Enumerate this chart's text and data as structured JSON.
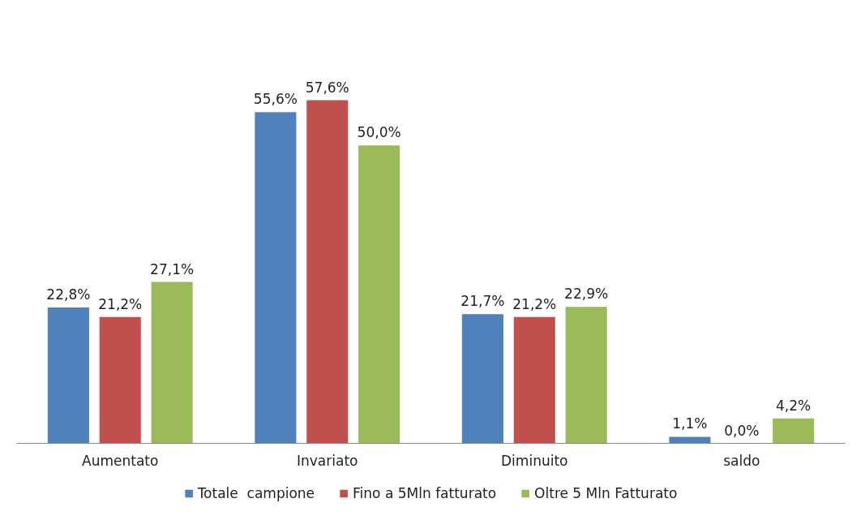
{
  "chart_data": {
    "type": "bar",
    "categories": [
      "Aumentato",
      "Invariato",
      "Diminuito",
      "saldo"
    ],
    "series": [
      {
        "name": "Totale  campione",
        "color": "#4f81bd",
        "values": [
          22.8,
          55.6,
          21.7,
          1.1
        ],
        "value_labels": [
          "22,8%",
          "55,6%",
          "21,7%",
          "1,1%"
        ]
      },
      {
        "name": "Fino a 5Mln fatturato",
        "color": "#c0504d",
        "values": [
          21.2,
          57.6,
          21.2,
          0.0
        ],
        "value_labels": [
          "21,2%",
          "57,6%",
          "21,2%",
          "0,0%"
        ]
      },
      {
        "name": "Oltre 5 Mln Fatturato",
        "color": "#9bbb59",
        "values": [
          27.1,
          50.0,
          22.9,
          4.2
        ],
        "value_labels": [
          "27,1%",
          "50,0%",
          "22,9%",
          "4,2%"
        ]
      }
    ],
    "legend": "bottom",
    "grid": false
  }
}
